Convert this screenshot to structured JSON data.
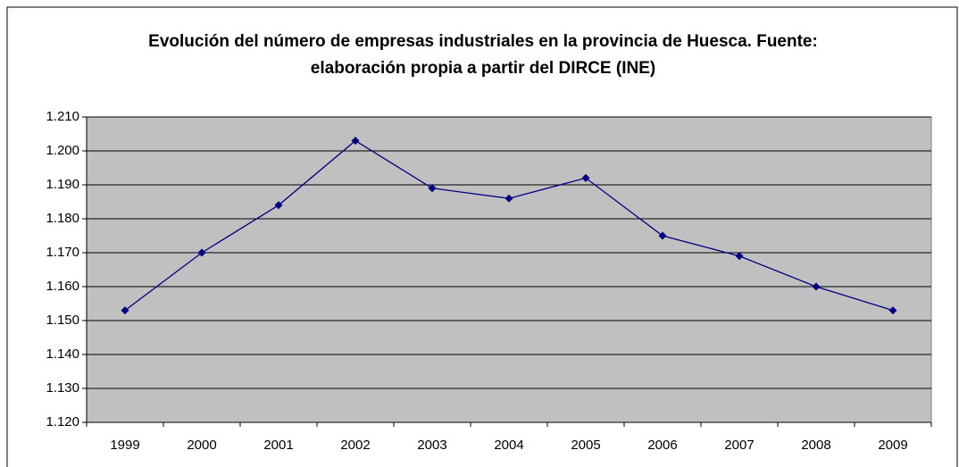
{
  "chart_data": {
    "type": "line",
    "title": "Evolución del número de empresas industriales en la provincia de Huesca. Fuente: elaboración propia a partir del DIRCE (INE)",
    "categories": [
      "1999",
      "2000",
      "2001",
      "2002",
      "2003",
      "2004",
      "2005",
      "2006",
      "2007",
      "2008",
      "2009"
    ],
    "series": [
      {
        "color": "#000080",
        "values": [
          1153,
          1170,
          1184,
          1203,
          1189,
          1186,
          1192,
          1175,
          1169,
          1160,
          1153
        ]
      }
    ],
    "ylim": [
      1120,
      1210
    ],
    "yticks": [
      {
        "value": 1120,
        "label": "1.120"
      },
      {
        "value": 1130,
        "label": "1.130"
      },
      {
        "value": 1140,
        "label": "1.140"
      },
      {
        "value": 1150,
        "label": "1.150"
      },
      {
        "value": 1160,
        "label": "1.160"
      },
      {
        "value": 1170,
        "label": "1.170"
      },
      {
        "value": 1180,
        "label": "1.180"
      },
      {
        "value": 1190,
        "label": "1.190"
      },
      {
        "value": 1200,
        "label": "1.200"
      },
      {
        "value": 1210,
        "label": "1.210"
      }
    ],
    "grid": true
  }
}
